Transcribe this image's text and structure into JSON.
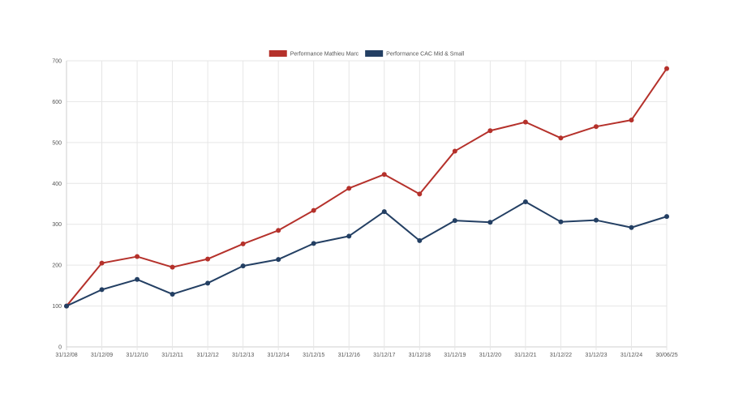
{
  "chart_data": {
    "type": "line",
    "title": "",
    "xlabel": "",
    "ylabel": "",
    "ylim": [
      0,
      700
    ],
    "yticks": [
      0,
      100,
      200,
      300,
      400,
      500,
      600,
      700
    ],
    "grid": true,
    "legend_position": "top-center",
    "categories": [
      "31/12/08",
      "31/12/09",
      "31/12/10",
      "31/12/11",
      "31/12/12",
      "31/12/13",
      "31/12/14",
      "31/12/15",
      "31/12/16",
      "31/12/17",
      "31/12/18",
      "31/12/19",
      "31/12/20",
      "31/12/21",
      "31/12/22",
      "31/12/23",
      "31/12/24",
      "30/06/25"
    ],
    "series": [
      {
        "name": "Performance Mathieu Marc",
        "color": "#b5312b",
        "values": [
          100,
          205,
          221,
          195,
          215,
          252,
          285,
          334,
          388,
          422,
          374,
          479,
          529,
          550,
          511,
          539,
          555,
          681
        ]
      },
      {
        "name": "Performance CAC Mid & Small",
        "color": "#233f63",
        "values": [
          100,
          140,
          165,
          129,
          156,
          198,
          214,
          253,
          271,
          331,
          260,
          309,
          305,
          355,
          306,
          310,
          292,
          319
        ]
      }
    ]
  }
}
